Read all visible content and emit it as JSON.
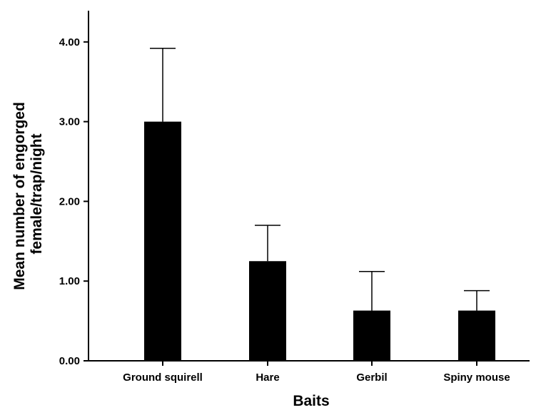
{
  "chart_data": {
    "type": "bar",
    "title": "",
    "xlabel": "Baits",
    "ylabel_lines": [
      "Mean number of engorged",
      "female/trap/night"
    ],
    "categories": [
      "Ground squirell",
      "Hare",
      "Gerbil",
      "Spiny mouse"
    ],
    "values": [
      3.0,
      1.25,
      0.63,
      0.63
    ],
    "error_upper": [
      3.92,
      1.7,
      1.12,
      0.88
    ],
    "ylim": [
      0,
      4.4
    ],
    "yticks": [
      0.0,
      1.0,
      2.0,
      3.0,
      4.0
    ],
    "ytick_labels": [
      "0.00",
      "1.00",
      "2.00",
      "3.00",
      "4.00"
    ],
    "grid": false,
    "bar_color": "#000000",
    "axis_color": "#000000"
  }
}
